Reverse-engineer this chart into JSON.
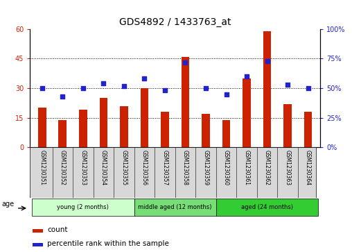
{
  "title": "GDS4892 / 1433763_at",
  "samples": [
    "GSM1230351",
    "GSM1230352",
    "GSM1230353",
    "GSM1230354",
    "GSM1230355",
    "GSM1230356",
    "GSM1230357",
    "GSM1230358",
    "GSM1230359",
    "GSM1230360",
    "GSM1230361",
    "GSM1230362",
    "GSM1230363",
    "GSM1230364"
  ],
  "counts": [
    20,
    14,
    19,
    25,
    21,
    30,
    18,
    46,
    17,
    14,
    35,
    59,
    22,
    18
  ],
  "percentiles": [
    50,
    43,
    50,
    54,
    52,
    58,
    48,
    72,
    50,
    45,
    60,
    73,
    53,
    50
  ],
  "bar_color": "#cc2200",
  "dot_color": "#2222cc",
  "ylim_left": [
    0,
    60
  ],
  "ylim_right": [
    0,
    100
  ],
  "yticks_left": [
    0,
    15,
    30,
    45,
    60
  ],
  "ytick_labels_left": [
    "0",
    "15",
    "30",
    "45",
    "60"
  ],
  "yticks_right": [
    0,
    25,
    50,
    75,
    100
  ],
  "ytick_labels_right": [
    "0%",
    "25%",
    "50%",
    "75%",
    "100%"
  ],
  "hlines": [
    15,
    30,
    45
  ],
  "group_colors": [
    "#ccffcc",
    "#77dd77",
    "#33cc33"
  ],
  "group_labels": [
    "young (2 months)",
    "middle aged (12 months)",
    "aged (24 months)"
  ],
  "group_starts": [
    0,
    5,
    9
  ],
  "group_ends": [
    5,
    9,
    14
  ],
  "age_label": "age",
  "legend_count_label": "count",
  "legend_percentile_label": "percentile rank within the sample",
  "bg_color": "#ffffff",
  "title_fontsize": 10,
  "tick_fontsize": 7,
  "bar_width": 0.4
}
